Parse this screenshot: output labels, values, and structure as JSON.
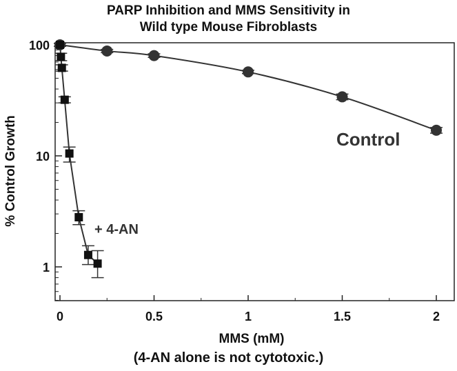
{
  "chart_data": {
    "type": "scatter",
    "title_line1": "PARP Inhibition and MMS Sensitivity in",
    "title_line2": "Wild type Mouse Fibroblasts",
    "xlabel": "MMS (mM)",
    "ylabel": "% Control Growth",
    "note": "(4-AN alone is not cytotoxic.)",
    "xlim": [
      0,
      2.05
    ],
    "ylim": [
      0.5,
      110
    ],
    "yscale": "log",
    "x_ticks": [
      0,
      0.5,
      1,
      1.5,
      2
    ],
    "x_tick_labels": [
      "0",
      "0.5",
      "1",
      "1.5",
      "2"
    ],
    "y_ticks": [
      1,
      10,
      100
    ],
    "y_tick_labels": [
      "1",
      "10",
      "100"
    ],
    "grid": false,
    "series": [
      {
        "name": "Control",
        "marker": "circle",
        "x": [
          0,
          0.25,
          0.5,
          1,
          1.5,
          2
        ],
        "y": [
          100,
          88,
          80,
          57,
          34,
          17
        ],
        "err_low": [
          97,
          85,
          77,
          55,
          32,
          16
        ],
        "err_high": [
          103,
          91,
          83,
          59,
          36,
          18
        ]
      },
      {
        "name": "+ 4-AN",
        "marker": "square",
        "x": [
          0,
          0.005,
          0.01,
          0.025,
          0.05,
          0.1,
          0.15,
          0.2
        ],
        "y": [
          100,
          78,
          62,
          32,
          10.5,
          2.8,
          1.28,
          1.07
        ],
        "err_low": [
          97,
          72,
          58,
          30,
          8.8,
          2.4,
          1.05,
          0.8
        ],
        "err_high": [
          103,
          84,
          66,
          34,
          12,
          3.2,
          1.55,
          1.4
        ]
      }
    ]
  }
}
